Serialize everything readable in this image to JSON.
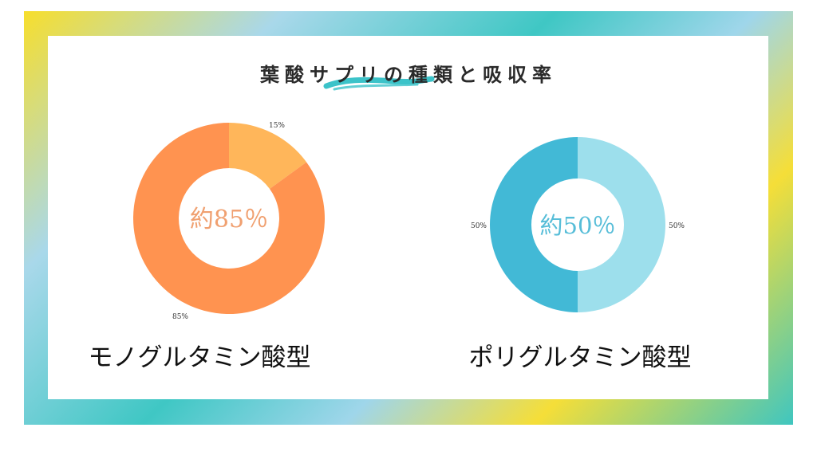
{
  "title": "葉酸サプリの種類と吸収率",
  "colors": {
    "mono_main": "#ff9350",
    "mono_minor": "#ffb65a",
    "mono_center_text": "#f0a070",
    "poly_dark": "#42b9d6",
    "poly_light": "#9ddfec",
    "poly_center_text": "#56bdd8"
  },
  "chart_data": [
    {
      "type": "pie",
      "categories": [
        "",
        ""
      ],
      "values": [
        15,
        85
      ],
      "slice_labels": [
        "15%",
        "85%"
      ],
      "center_label": "約85％",
      "caption": "モノグルタミン酸型"
    },
    {
      "type": "pie",
      "categories": [
        "",
        ""
      ],
      "values": [
        50,
        50
      ],
      "slice_labels": [
        "50%",
        "50%"
      ],
      "center_label": "約50％",
      "caption": "ポリグルタミン酸型"
    }
  ]
}
